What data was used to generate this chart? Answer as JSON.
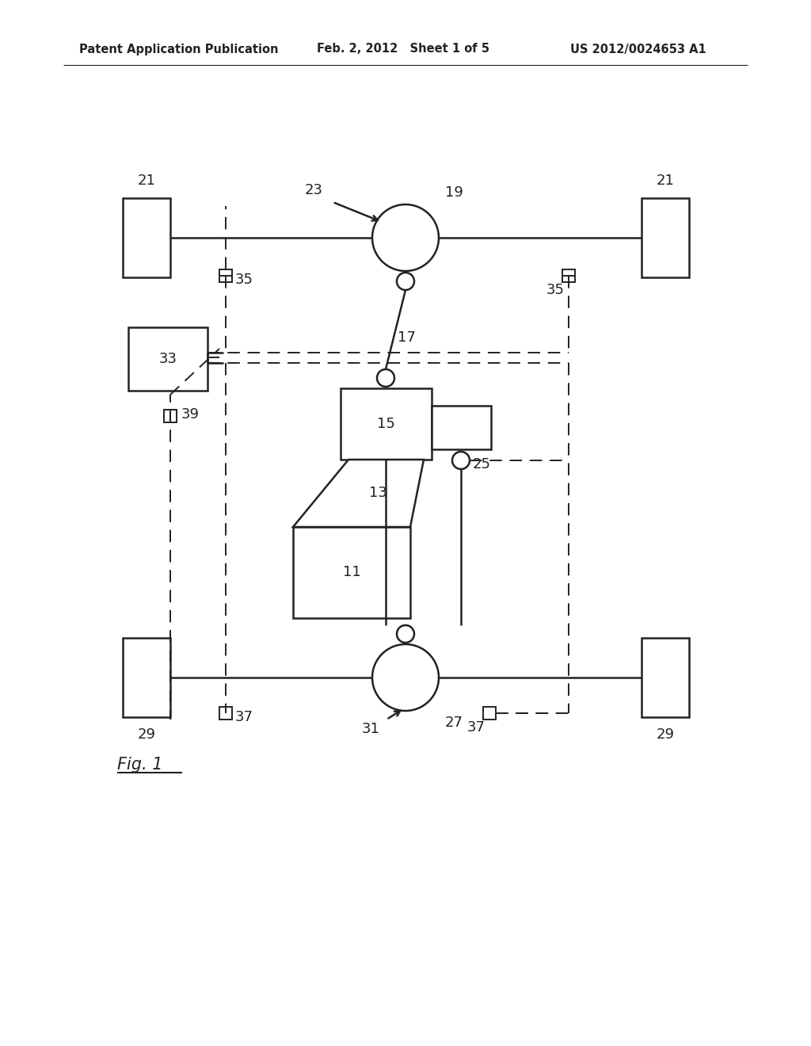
{
  "bg_color": "#ffffff",
  "line_color": "#222222",
  "header_left": "Patent Application Publication",
  "header_mid": "Feb. 2, 2012   Sheet 1 of 5",
  "header_right": "US 2012/0024653 A1",
  "fig_label": "Fig. 1"
}
